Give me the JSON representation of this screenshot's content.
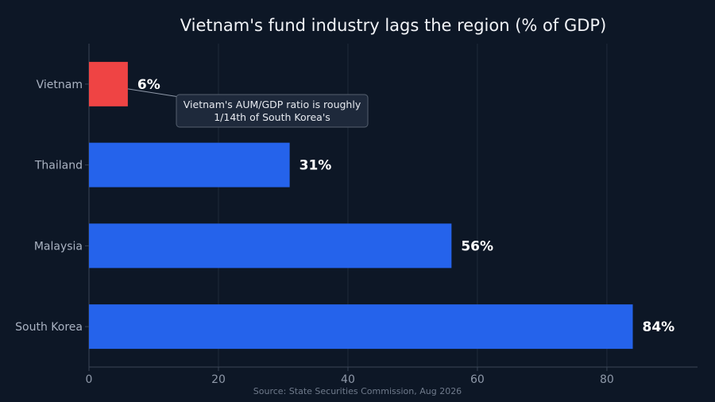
{
  "chart_data": {
    "type": "bar",
    "orientation": "horizontal",
    "title": "Vietnam's fund industry lags the region (% of GDP)",
    "categories": [
      "Vietnam",
      "Thailand",
      "Malaysia",
      "South Korea"
    ],
    "values": [
      6,
      31,
      56,
      84
    ],
    "value_labels": [
      "6%",
      "31%",
      "56%",
      "84%"
    ],
    "bar_colors": [
      "#ef4444",
      "#2563eb",
      "#2563eb",
      "#2563eb"
    ],
    "xlim": [
      0,
      94
    ],
    "xticks": [
      0,
      20,
      40,
      60,
      80
    ],
    "grid": "vertical",
    "annotation": {
      "target_category": "Vietnam",
      "lines": [
        "Vietnam's AUM/GDP ratio is roughly",
        "1/14th of South Korea's"
      ]
    },
    "source": "Source: State Securities Commission, Aug 2026"
  },
  "colors": {
    "background": "#0d1726",
    "grid": "#1f2a3a",
    "axis": "#3a4556",
    "annotation_fill": "#1e293b",
    "annotation_border": "#55606f"
  }
}
